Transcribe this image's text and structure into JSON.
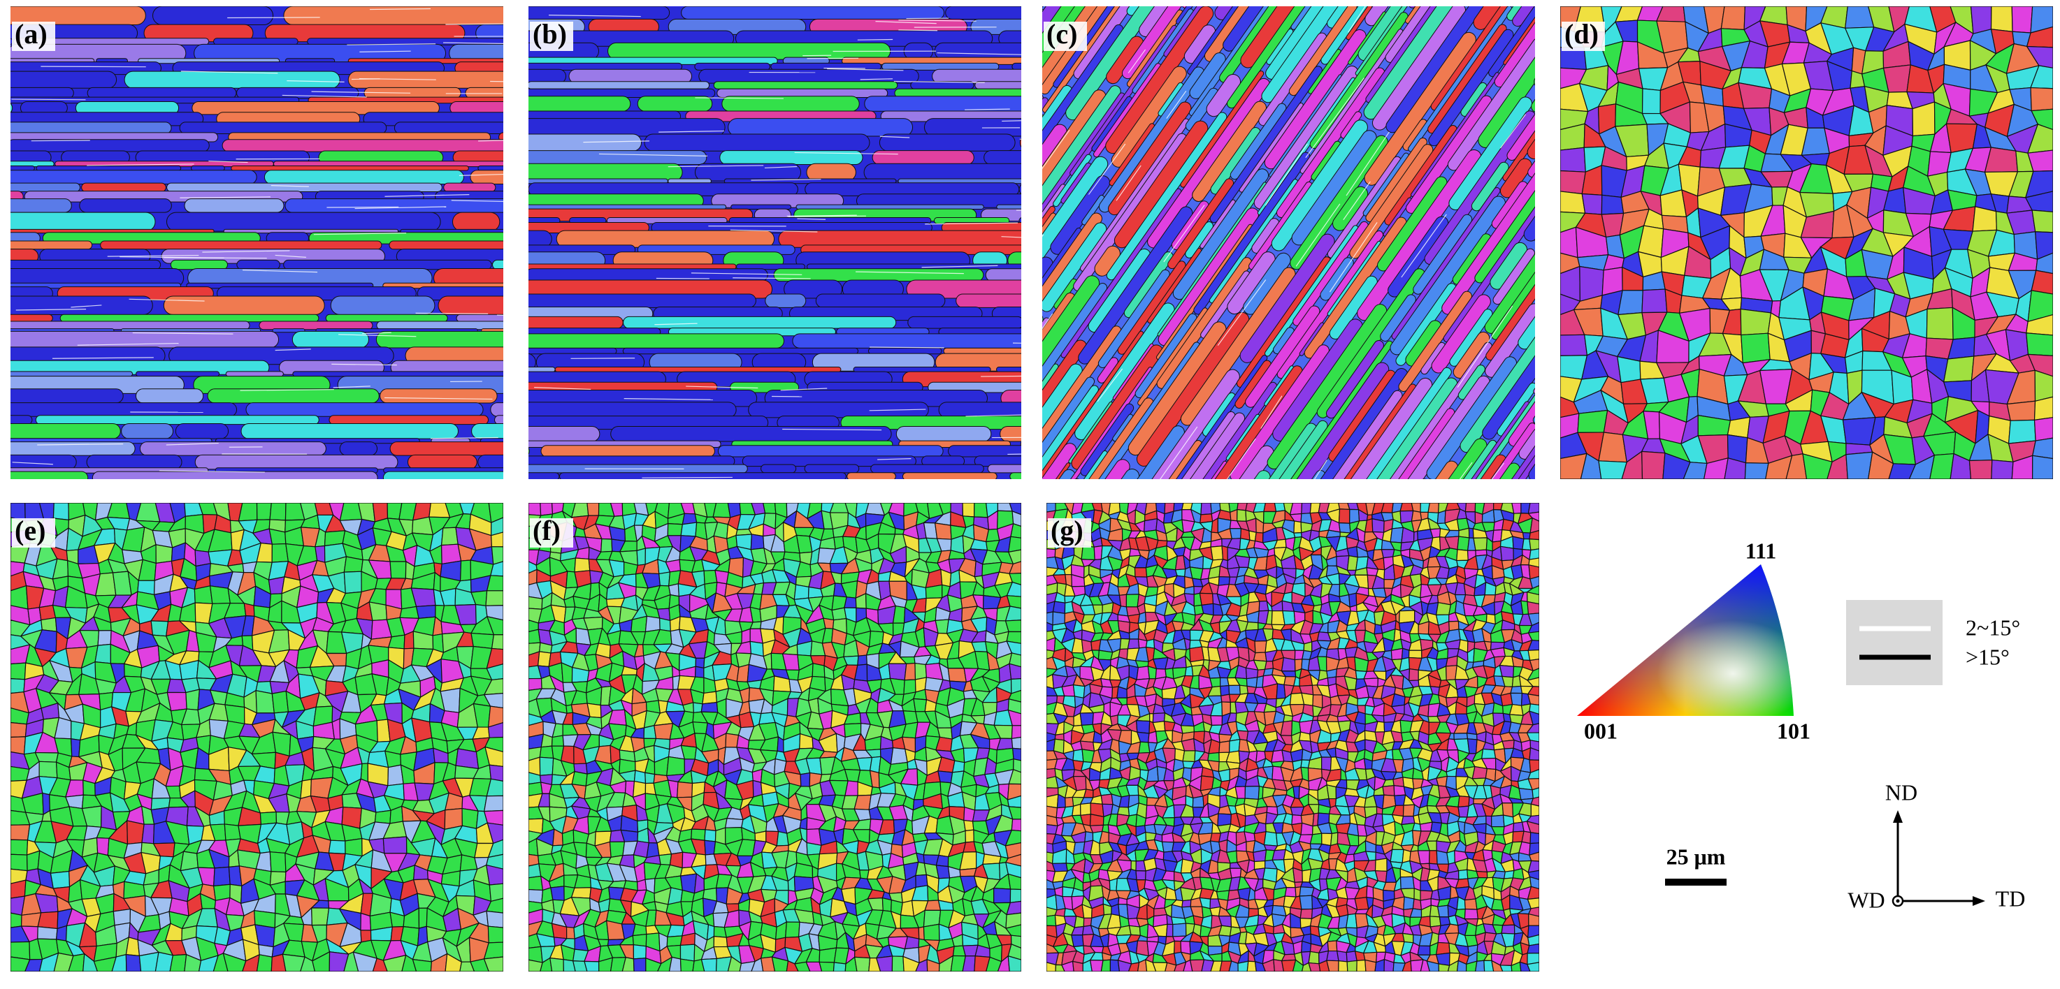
{
  "panels": [
    {
      "label": "(a)"
    },
    {
      "label": "(b)"
    },
    {
      "label": "(c)"
    },
    {
      "label": "(d)"
    },
    {
      "label": "(e)"
    },
    {
      "label": "(f)"
    },
    {
      "label": "(g)"
    }
  ],
  "ipf_legend": {
    "top": "111",
    "left": "001",
    "right": "101"
  },
  "boundary_legend": {
    "low_angle": "2~15°",
    "high_angle": ">15°"
  },
  "scale_bar": "25 μm",
  "axes": {
    "up": "ND",
    "out": "WD",
    "right": "TD"
  }
}
